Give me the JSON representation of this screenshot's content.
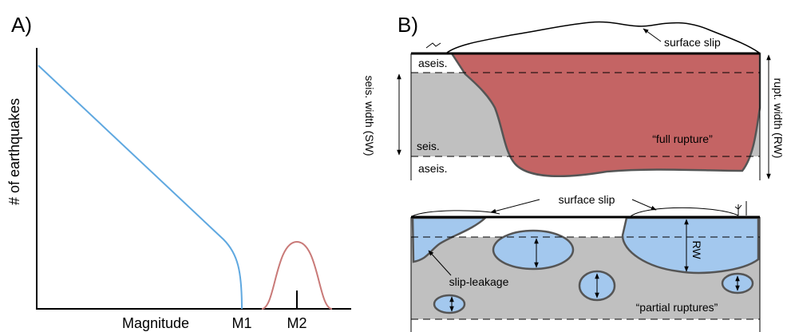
{
  "panel_a": {
    "label": "A)",
    "y_label": "# of earthquakes",
    "x_label": "Magnitude",
    "markers": [
      "M1",
      "M2"
    ]
  },
  "panel_b": {
    "label": "B)",
    "top": {
      "surface_slip": "surface slip",
      "aseis_top": "aseis.",
      "seis": "seis.",
      "aseis_bottom": "aseis.",
      "seis_width": "seis. width (SW)",
      "rupt_width": "rupt. width (RW)",
      "full_rupture": "“full rupture”"
    },
    "bottom": {
      "surface_slip": "surface slip",
      "slip_leakage": "slip-leakage",
      "rw": "RW",
      "partial_ruptures": "“partial ruptures”"
    }
  }
}
